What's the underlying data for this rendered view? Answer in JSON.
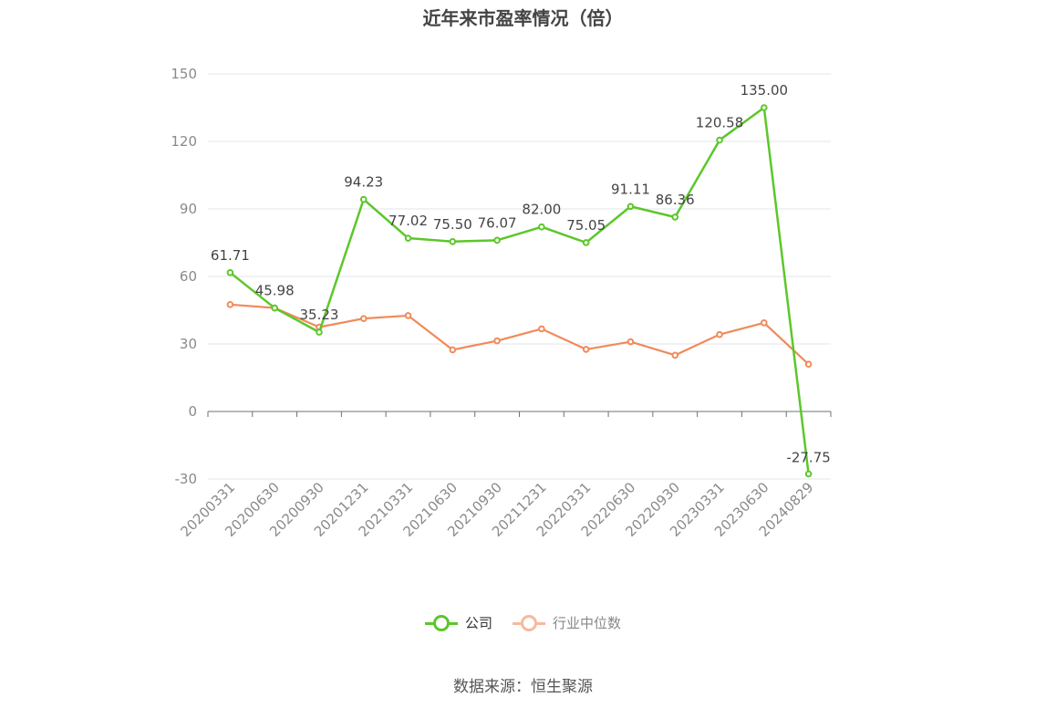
{
  "title": "近年来市盈率情况（倍）",
  "source": "数据来源：恒生聚源",
  "colors": {
    "company": "#5cc72a",
    "industry": "#f08a5a",
    "industry_legend": "#f7b9a0",
    "grid": "#e3e6ee",
    "axis": "#6e7079"
  },
  "chart_data": {
    "type": "line",
    "title": "近年来市盈率情况（倍）",
    "xlabel": "",
    "ylabel": "",
    "ylim": [
      -30,
      150
    ],
    "yticks": [
      150,
      120,
      90,
      60,
      30,
      0,
      -30
    ],
    "grid": true,
    "legend_position": "bottom",
    "categories": [
      "20200331",
      "20200630",
      "20200930",
      "20201231",
      "20210331",
      "20210630",
      "20210930",
      "20211231",
      "20220331",
      "20220630",
      "20220930",
      "20230331",
      "20230630",
      "20240829"
    ],
    "series": [
      {
        "name": "公司",
        "values": [
          61.71,
          45.98,
          35.23,
          94.23,
          77.02,
          75.5,
          76.07,
          82.0,
          75.05,
          91.11,
          86.36,
          120.58,
          135.0,
          -27.75
        ],
        "labels": [
          "61.71",
          "45.98",
          "35.23",
          "94.23",
          "77.02",
          "75.50",
          "76.07",
          "82.00",
          "75.05",
          "91.11",
          "86.36",
          "120.58",
          "135.00",
          "-27.75"
        ]
      },
      {
        "name": "行业中位数",
        "values": [
          47.5,
          46.0,
          37.5,
          41.3,
          42.6,
          27.4,
          31.4,
          36.7,
          27.6,
          31.0,
          25.0,
          34.2,
          39.4,
          21.0
        ]
      }
    ]
  }
}
